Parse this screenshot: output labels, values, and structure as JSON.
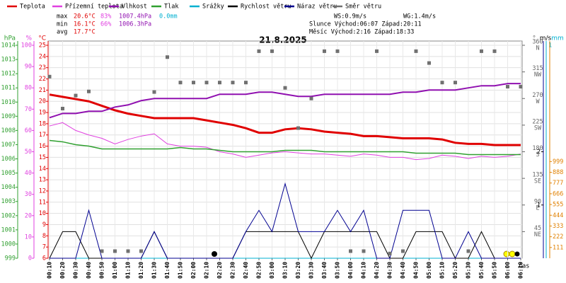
{
  "chart_data": {
    "type": "line",
    "title": "21.8.2025",
    "x_label": "čas",
    "categories": [
      "00:10",
      "00:20",
      "00:30",
      "00:40",
      "00:50",
      "01:00",
      "01:10",
      "01:20",
      "01:30",
      "01:40",
      "01:50",
      "02:00",
      "02:10",
      "02:20",
      "02:30",
      "02:40",
      "02:50",
      "03:00",
      "03:10",
      "03:20",
      "03:30",
      "03:40",
      "03:50",
      "04:00",
      "04:10",
      "04:20",
      "04:30",
      "04:40",
      "04:50",
      "05:00",
      "05:10",
      "05:20",
      "05:30",
      "05:40",
      "05:50",
      "06:00",
      "06:10"
    ],
    "ylim": [
      6,
      25
    ],
    "yticks": [
      6,
      7,
      8,
      9,
      10,
      11,
      12,
      13,
      14,
      15,
      16,
      17,
      18,
      19,
      20,
      21,
      22,
      23,
      24,
      25
    ],
    "y_unit": "°C",
    "y2lim": [
      0,
      100
    ],
    "y2ticks": [
      0,
      10,
      20,
      30,
      40,
      50,
      60,
      70,
      80,
      90,
      100
    ],
    "y2_unit": "%",
    "y3lim": [
      999,
      1014
    ],
    "y3ticks": [
      999,
      1000,
      1001,
      1002,
      1003,
      1004,
      1005,
      1006,
      1007,
      1008,
      1009,
      1010,
      1011,
      1012,
      1013,
      1014
    ],
    "y3_unit": "hPa",
    "y4lim": [
      0,
      360
    ],
    "y4ticks": [
      45,
      90,
      135,
      180,
      225,
      270,
      315,
      360
    ],
    "y4_compass": [
      "NE",
      "E",
      "SE",
      "S",
      "SW",
      "W",
      "NW",
      "N"
    ],
    "y4_unit": "°",
    "y5lim": [
      0,
      4
    ],
    "y5ticks": [
      1,
      2
    ],
    "y5_unit": "m/s",
    "y6lim": [
      0,
      1
    ],
    "y6ticks": [
      1
    ],
    "y6_unit": "mm",
    "y7lim": [
      0,
      2200
    ],
    "y7ticks": [
      111,
      222,
      333,
      444,
      555,
      666,
      777,
      888,
      999
    ],
    "grid": true,
    "series": [
      {
        "name": "Teplota",
        "color": "#e00000",
        "axis": "y",
        "values": [
          20.6,
          20.4,
          20.2,
          20.0,
          19.6,
          19.2,
          18.9,
          18.7,
          18.5,
          18.5,
          18.5,
          18.5,
          18.3,
          18.1,
          17.9,
          17.6,
          17.2,
          17.2,
          17.5,
          17.6,
          17.5,
          17.3,
          17.2,
          17.1,
          16.9,
          16.9,
          16.8,
          16.7,
          16.7,
          16.7,
          16.6,
          16.3,
          16.2,
          16.2,
          16.1,
          16.1,
          16.1
        ]
      },
      {
        "name": "Přízemní teplota",
        "color": "#e040e0",
        "axis": "y",
        "values": [
          17.8,
          18.1,
          17.4,
          17.0,
          16.7,
          16.2,
          16.6,
          16.9,
          17.1,
          16.2,
          16.0,
          16.0,
          15.9,
          15.5,
          15.3,
          15.0,
          15.2,
          15.4,
          15.5,
          15.4,
          15.3,
          15.3,
          15.2,
          15.1,
          15.3,
          15.2,
          15.0,
          15.0,
          14.8,
          14.9,
          15.2,
          15.1,
          14.9,
          15.1,
          15.0,
          15.1,
          15.3
        ]
      },
      {
        "name": "Vlhkost",
        "color": "#9010b0",
        "axis": "y2",
        "values": [
          66,
          68,
          68,
          69,
          69,
          71,
          72,
          74,
          75,
          75,
          75,
          75,
          75,
          77,
          77,
          77,
          78,
          78,
          77,
          76,
          76,
          77,
          77,
          77,
          77,
          77,
          77,
          78,
          78,
          79,
          79,
          79,
          80,
          81,
          81,
          82,
          82
        ]
      },
      {
        "name": "Tlak",
        "color": "#30a030",
        "axis": "y3",
        "values": [
          1007.3,
          1007.2,
          1007.0,
          1006.9,
          1006.7,
          1006.7,
          1006.7,
          1006.7,
          1006.7,
          1006.7,
          1006.8,
          1006.7,
          1006.7,
          1006.6,
          1006.5,
          1006.5,
          1006.5,
          1006.5,
          1006.6,
          1006.6,
          1006.6,
          1006.5,
          1006.5,
          1006.5,
          1006.5,
          1006.5,
          1006.5,
          1006.5,
          1006.4,
          1006.4,
          1006.4,
          1006.4,
          1006.3,
          1006.3,
          1006.3,
          1006.3,
          1006.3
        ]
      },
      {
        "name": "Srážky",
        "color": "#00b0d0",
        "axis": "y6",
        "values": [
          0,
          0,
          0,
          0,
          0,
          0,
          0,
          0,
          0,
          0,
          0,
          0,
          0,
          0,
          0,
          0,
          0,
          0,
          0,
          0,
          0,
          0,
          0,
          0,
          0,
          0,
          0,
          0,
          0,
          0,
          0,
          0,
          0,
          0,
          0,
          0,
          0
        ]
      },
      {
        "name": "Rychlost větru",
        "color": "#000000",
        "axis": "y5",
        "values": [
          0,
          0.5,
          0.5,
          0,
          0,
          0,
          0,
          0,
          0.5,
          0,
          0,
          0,
          0,
          0,
          0,
          0.5,
          0.5,
          0.5,
          0.5,
          0.5,
          0,
          0.5,
          0.5,
          0.5,
          0.5,
          0.5,
          0,
          0,
          0.5,
          0.5,
          0.5,
          0,
          0,
          0.5,
          0,
          0,
          0
        ]
      },
      {
        "name": "Náraz větru",
        "color": "#000090",
        "axis": "y5",
        "values": [
          0,
          0,
          0,
          0.9,
          0,
          0,
          0,
          0,
          0.5,
          0,
          0,
          0,
          0,
          0,
          0,
          0.5,
          0.9,
          0.5,
          1.4,
          0.5,
          0.5,
          0.5,
          0.9,
          0.5,
          0.9,
          0,
          0,
          0.9,
          0.9,
          0.9,
          0,
          0,
          0.5,
          0,
          0,
          0,
          0
        ]
      },
      {
        "name": "Směr větru",
        "color": "#707070",
        "axis": "y4",
        "type": "scatter",
        "values": [
          307,
          253,
          275,
          282,
          12,
          12,
          12,
          12,
          281,
          340,
          297,
          297,
          297,
          297,
          297,
          297,
          350,
          350,
          288,
          220,
          270,
          350,
          350,
          12,
          12,
          350,
          8,
          12,
          350,
          330,
          297,
          297,
          12,
          350,
          350,
          290,
          290
        ]
      }
    ],
    "stats": {
      "rows": [
        {
          "label": "max",
          "temp": "20.6°C",
          "hum": "83%",
          "press": "1007.4hPa",
          "rain": "0.0mm"
        },
        {
          "label": "min",
          "temp": "16.1°C",
          "hum": "66%",
          "press": "1006.3hPa"
        },
        {
          "label": "avg",
          "temp": "17.7°C"
        }
      ],
      "ws": "WS:0.9m/s",
      "wg": "WG:1.4m/s",
      "sun": "Slunce Východ:06:07  Západ:20:11",
      "moon": "Měsíc  Východ:2:16   Západ:18:33"
    }
  }
}
